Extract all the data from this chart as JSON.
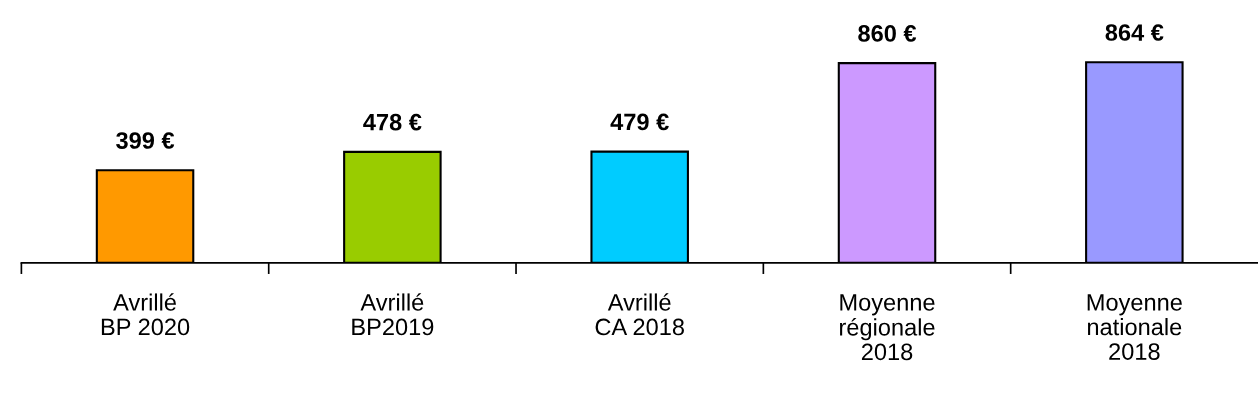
{
  "chart_data": {
    "type": "bar",
    "categories": [
      "Avrillé\nBP 2020",
      "Avrillé\nBP2019",
      "Avrillé\nCA 2018",
      "Moyenne\nrégionale\n2018",
      "Moyenne\nnationale\n2018"
    ],
    "values": [
      399,
      478,
      479,
      860,
      864
    ],
    "colors": [
      "#ff9900",
      "#99cc00",
      "#00ccff",
      "#cc99ff",
      "#9999ff"
    ],
    "value_labels": [
      "399 €",
      "478 €",
      "479 €",
      "860 €",
      "864 €"
    ],
    "grid": false,
    "legend": false
  }
}
